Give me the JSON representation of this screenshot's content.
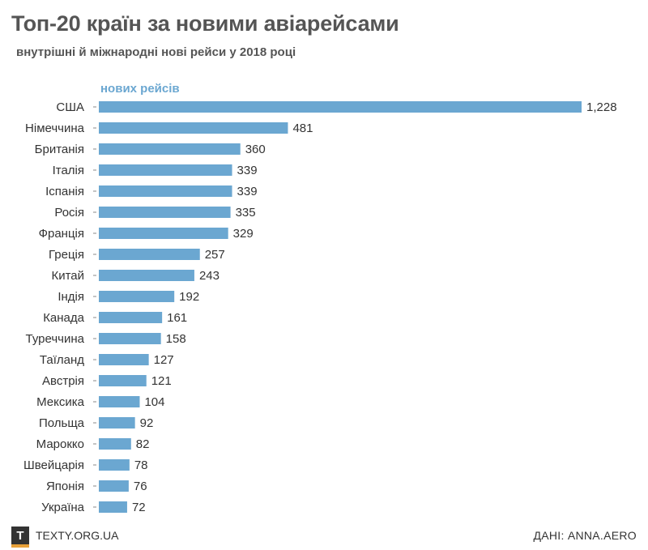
{
  "title": "Топ-20 країн за новими авіарейсами",
  "subtitle": "внутрішні й міжнародні нові рейси у 2018 році",
  "footer": {
    "logo_letter": "T",
    "site": "TEXTY.ORG.UA",
    "source": "ДАНІ: ANNA.AERO"
  },
  "colors": {
    "bar": "#6ba7d1",
    "series_label": "#6ba7d1"
  },
  "chart_data": {
    "type": "bar",
    "orientation": "horizontal",
    "title": "Топ-20 країн за новими авіарейсами",
    "subtitle": "внутрішні й міжнародні нові рейси у 2018 році",
    "series_name": "нових рейсів",
    "categories": [
      "США",
      "Німеччина",
      "Британія",
      "Італія",
      "Іспанія",
      "Росія",
      "Франція",
      "Греція",
      "Китай",
      "Індія",
      "Канада",
      "Туреччина",
      "Таїланд",
      "Австрія",
      "Мексика",
      "Польща",
      "Марокко",
      "Швейцарія",
      "Японія",
      "Україна"
    ],
    "values": [
      1228,
      481,
      360,
      339,
      339,
      335,
      329,
      257,
      243,
      192,
      161,
      158,
      127,
      121,
      104,
      92,
      82,
      78,
      76,
      72
    ],
    "value_labels": [
      "1,228",
      "481",
      "360",
      "339",
      "339",
      "335",
      "329",
      "257",
      "243",
      "192",
      "161",
      "158",
      "127",
      "121",
      "104",
      "92",
      "82",
      "78",
      "76",
      "72"
    ],
    "xlim": [
      0,
      1228
    ],
    "grid": false
  }
}
